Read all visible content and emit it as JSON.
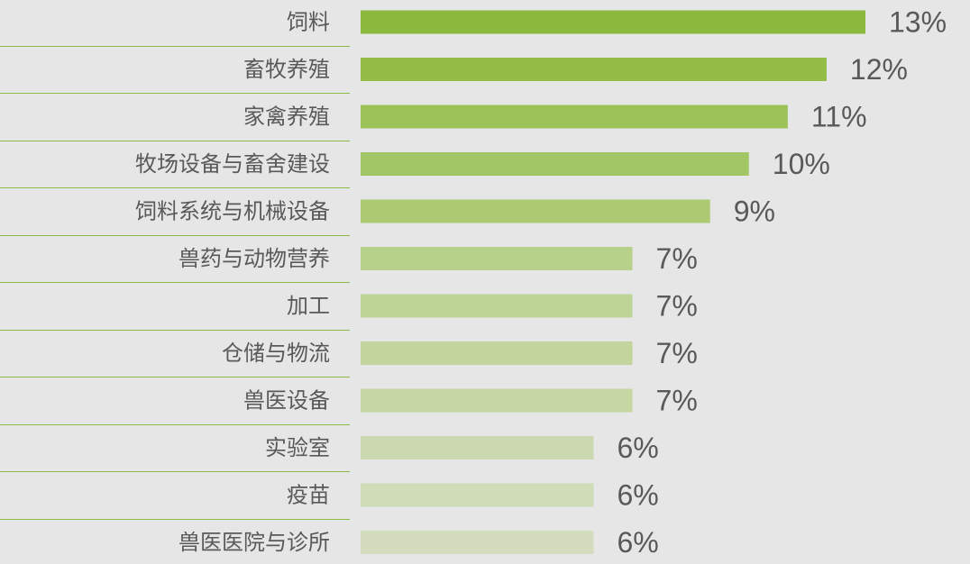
{
  "chart_data": {
    "type": "bar",
    "orientation": "horizontal",
    "categories": [
      "饲料",
      "畜牧养殖",
      "家禽养殖",
      "牧场设备与畜舍建设",
      "饲料系统与机械设备",
      "兽药与动物营养",
      "加工",
      "仓储与物流",
      "兽医设备",
      "实验室",
      "疫苗",
      "兽医医院与诊所"
    ],
    "values": [
      13,
      12,
      11,
      10,
      9,
      7,
      7,
      7,
      7,
      6,
      6,
      6
    ],
    "value_labels": [
      "13%",
      "12%",
      "11%",
      "10%",
      "9%",
      "7%",
      "7%",
      "7%",
      "7%",
      "6%",
      "6%",
      "6%"
    ],
    "unit": "%",
    "xlim": [
      0,
      13
    ],
    "grid": false,
    "legend": "none",
    "colors": [
      "#8cb83e",
      "#93bd47",
      "#9bc257",
      "#a2c665",
      "#acca72",
      "#b7d08a",
      "#bed396",
      "#c2d59d",
      "#c5d6a3",
      "#ccd9b0",
      "#d0dbb7",
      "#d3ddbd"
    ],
    "separator_color": "#8cb84a",
    "background": "#e6e6e6"
  }
}
